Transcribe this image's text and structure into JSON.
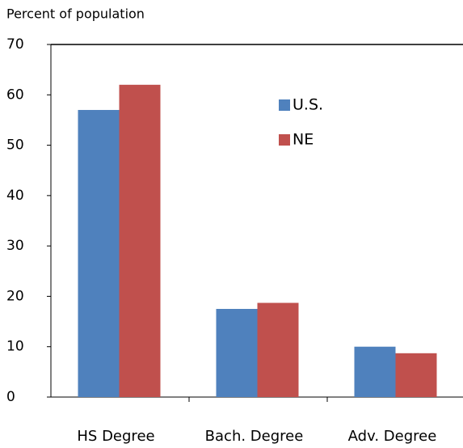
{
  "chart_data": {
    "type": "bar",
    "y_axis_label": "Percent of population",
    "categories": [
      "HS Degree",
      "Bach. Degree",
      "Adv. Degree"
    ],
    "series": [
      {
        "name": "U.S.",
        "color": "#4f81bd",
        "values": [
          57,
          17.5,
          10
        ]
      },
      {
        "name": "NE",
        "color": "#c0504d",
        "values": [
          62,
          18.7,
          8.7
        ]
      }
    ],
    "ylim": [
      0,
      70
    ],
    "yticks": [
      0,
      10,
      20,
      30,
      40,
      50,
      60,
      70
    ],
    "grid": false,
    "legend": "upper right"
  }
}
